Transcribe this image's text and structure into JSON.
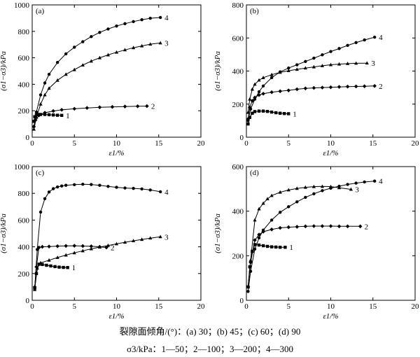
{
  "caption": {
    "line1": "裂隙面倾角/(°)：(a) 30；(b) 45；(c) 60；(d) 90",
    "line2": "σ3/kPa：1—50；2—100；3—200；4—300"
  },
  "chart_data": [
    {
      "type": "line",
      "panel": "(a)",
      "xlabel": "ε1/%",
      "ylabel": "(σ1−σ3)/kPa",
      "xlim": [
        0,
        20
      ],
      "ylim": [
        0,
        1000
      ],
      "xticks": [
        0,
        5,
        10,
        15,
        20
      ],
      "yticks": [
        0,
        200,
        400,
        600,
        800,
        1000
      ],
      "grid": false,
      "series": [
        {
          "name": "1",
          "x": [
            0.2,
            0.3,
            0.5,
            0.7,
            1.0,
            1.5,
            2.0,
            2.5,
            3.0,
            3.5
          ],
          "y": [
            120,
            155,
            170,
            172,
            172,
            172,
            170,
            168,
            166,
            165
          ]
        },
        {
          "name": "2",
          "x": [
            0.2,
            0.4,
            0.8,
            1.5,
            2.5,
            3.5,
            5,
            6.5,
            8,
            9.5,
            11,
            12.5,
            13.6
          ],
          "y": [
            80,
            130,
            165,
            185,
            198,
            207,
            215,
            221,
            226,
            229,
            232,
            234,
            235
          ]
        },
        {
          "name": "3",
          "x": [
            0.2,
            0.5,
            1,
            1.5,
            2,
            3,
            4,
            5,
            6,
            7,
            8,
            9,
            10,
            11,
            12,
            13,
            14,
            15.2
          ],
          "y": [
            60,
            150,
            250,
            320,
            370,
            430,
            475,
            510,
            545,
            575,
            600,
            622,
            642,
            660,
            676,
            690,
            703,
            712
          ]
        },
        {
          "name": "4",
          "x": [
            0.2,
            0.5,
            1,
            1.5,
            2,
            3,
            4,
            5,
            6,
            7,
            8,
            9,
            10,
            11,
            12,
            13,
            14,
            15.2
          ],
          "y": [
            80,
            190,
            320,
            410,
            475,
            565,
            630,
            680,
            722,
            760,
            792,
            818,
            840,
            858,
            874,
            888,
            899,
            905
          ]
        }
      ]
    },
    {
      "type": "line",
      "panel": "(b)",
      "xlabel": "ε1/%",
      "ylabel": "(σ1−σ3)/kPa",
      "xlim": [
        0,
        20
      ],
      "ylim": [
        0,
        800
      ],
      "xticks": [
        0,
        5,
        10,
        15,
        20
      ],
      "yticks": [
        0,
        200,
        400,
        600,
        800
      ],
      "grid": false,
      "series": [
        {
          "name": "1",
          "x": [
            0.2,
            0.4,
            0.7,
            1,
            1.5,
            2,
            2.5,
            3,
            3.5,
            4,
            4.5,
            5
          ],
          "y": [
            80,
            120,
            145,
            155,
            158,
            158,
            156,
            152,
            148,
            145,
            143,
            142
          ]
        },
        {
          "name": "2",
          "x": [
            0.2,
            0.4,
            0.7,
            1,
            1.5,
            2,
            3,
            4,
            5,
            6,
            7,
            8,
            9,
            10,
            11,
            12,
            13,
            14,
            15.2
          ],
          "y": [
            110,
            180,
            220,
            240,
            255,
            263,
            272,
            278,
            283,
            290,
            295,
            298,
            300,
            302,
            304,
            306,
            307,
            308,
            310
          ]
        },
        {
          "name": "3",
          "x": [
            0.2,
            0.4,
            0.7,
            1,
            1.5,
            2,
            3,
            4,
            5,
            6,
            7,
            8,
            9,
            10,
            11,
            12,
            13,
            14.3
          ],
          "y": [
            150,
            230,
            290,
            320,
            345,
            360,
            378,
            392,
            402,
            410,
            418,
            425,
            432,
            438,
            442,
            445,
            447,
            448
          ]
        },
        {
          "name": "4",
          "x": [
            0.2,
            0.5,
            1,
            1.5,
            2,
            3,
            4,
            5,
            6,
            7,
            8,
            9,
            10,
            11,
            12,
            13,
            14,
            15.2
          ],
          "y": [
            100,
            170,
            230,
            275,
            310,
            360,
            395,
            418,
            438,
            458,
            478,
            498,
            518,
            536,
            555,
            572,
            588,
            605
          ]
        }
      ]
    },
    {
      "type": "line",
      "panel": "(c)",
      "xlabel": "ε1/%",
      "ylabel": "(σ1−σ3)/kPa",
      "xlim": [
        0,
        20
      ],
      "ylim": [
        0,
        1000
      ],
      "xticks": [
        0,
        5,
        10,
        15,
        20
      ],
      "yticks": [
        0,
        200,
        400,
        600,
        800,
        1000
      ],
      "grid": false,
      "series": [
        {
          "name": "1",
          "x": [
            0.3,
            0.5,
            0.8,
            1.2,
            1.7,
            2.2,
            2.7,
            3.2,
            3.7,
            4.2
          ],
          "y": [
            90,
            200,
            270,
            268,
            262,
            257,
            252,
            248,
            246,
            245
          ]
        },
        {
          "name": "2",
          "x": [
            0.3,
            0.5,
            0.8,
            1.2,
            2,
            3,
            4,
            5,
            6,
            7,
            8,
            8.8
          ],
          "y": [
            100,
            250,
            395,
            400,
            402,
            405,
            407,
            408,
            406,
            404,
            400,
            395
          ]
        },
        {
          "name": "3",
          "x": [
            0.3,
            0.6,
            1,
            2,
            3,
            4,
            5,
            6,
            7,
            8,
            9,
            10,
            11,
            12,
            13,
            14,
            15.2
          ],
          "y": [
            80,
            240,
            280,
            300,
            320,
            338,
            355,
            370,
            385,
            398,
            410,
            422,
            434,
            445,
            455,
            465,
            475
          ]
        },
        {
          "name": "4",
          "x": [
            0.3,
            0.6,
            1,
            1.5,
            2,
            2.5,
            3,
            3.5,
            4,
            5,
            6,
            7,
            8,
            9,
            10,
            11,
            12,
            13,
            14,
            15.2
          ],
          "y": [
            90,
            380,
            660,
            760,
            810,
            835,
            848,
            855,
            860,
            865,
            868,
            866,
            860,
            852,
            845,
            840,
            837,
            833,
            825,
            812
          ]
        }
      ]
    },
    {
      "type": "line",
      "panel": "(d)",
      "xlabel": "ε1/%",
      "ylabel": "(σ1−σ3)/kPa",
      "xlim": [
        0,
        20
      ],
      "ylim": [
        0,
        600
      ],
      "xticks": [
        0,
        5,
        10,
        15,
        20
      ],
      "yticks": [
        0,
        200,
        400,
        600
      ],
      "grid": false,
      "series": [
        {
          "name": "1",
          "x": [
            0.2,
            0.4,
            0.7,
            1,
            1.5,
            2,
            2.5,
            3,
            3.5,
            4,
            4.6
          ],
          "y": [
            60,
            150,
            220,
            250,
            248,
            245,
            242,
            240,
            239,
            238,
            238
          ]
        },
        {
          "name": "2",
          "x": [
            0.2,
            0.5,
            1,
            1.5,
            2,
            3,
            4,
            5,
            6,
            7,
            8,
            9,
            10,
            11,
            12,
            13.5
          ],
          "y": [
            60,
            170,
            270,
            295,
            308,
            318,
            325,
            328,
            330,
            332,
            333,
            333,
            333,
            332,
            332,
            332
          ]
        },
        {
          "name": "3",
          "x": [
            0.2,
            0.5,
            1,
            1.5,
            2,
            2.5,
            3,
            4,
            5,
            6,
            7,
            8,
            9,
            10,
            11,
            12.4
          ],
          "y": [
            60,
            180,
            360,
            410,
            435,
            455,
            470,
            485,
            495,
            502,
            507,
            510,
            511,
            510,
            505,
            498
          ]
        },
        {
          "name": "4",
          "x": [
            0.2,
            0.5,
            1,
            1.5,
            2,
            3,
            4,
            5,
            6,
            7,
            8,
            9,
            10,
            11,
            12,
            13,
            14,
            15.2
          ],
          "y": [
            40,
            130,
            230,
            280,
            315,
            360,
            395,
            420,
            442,
            462,
            478,
            492,
            503,
            512,
            520,
            526,
            531,
            535
          ]
        }
      ]
    }
  ]
}
